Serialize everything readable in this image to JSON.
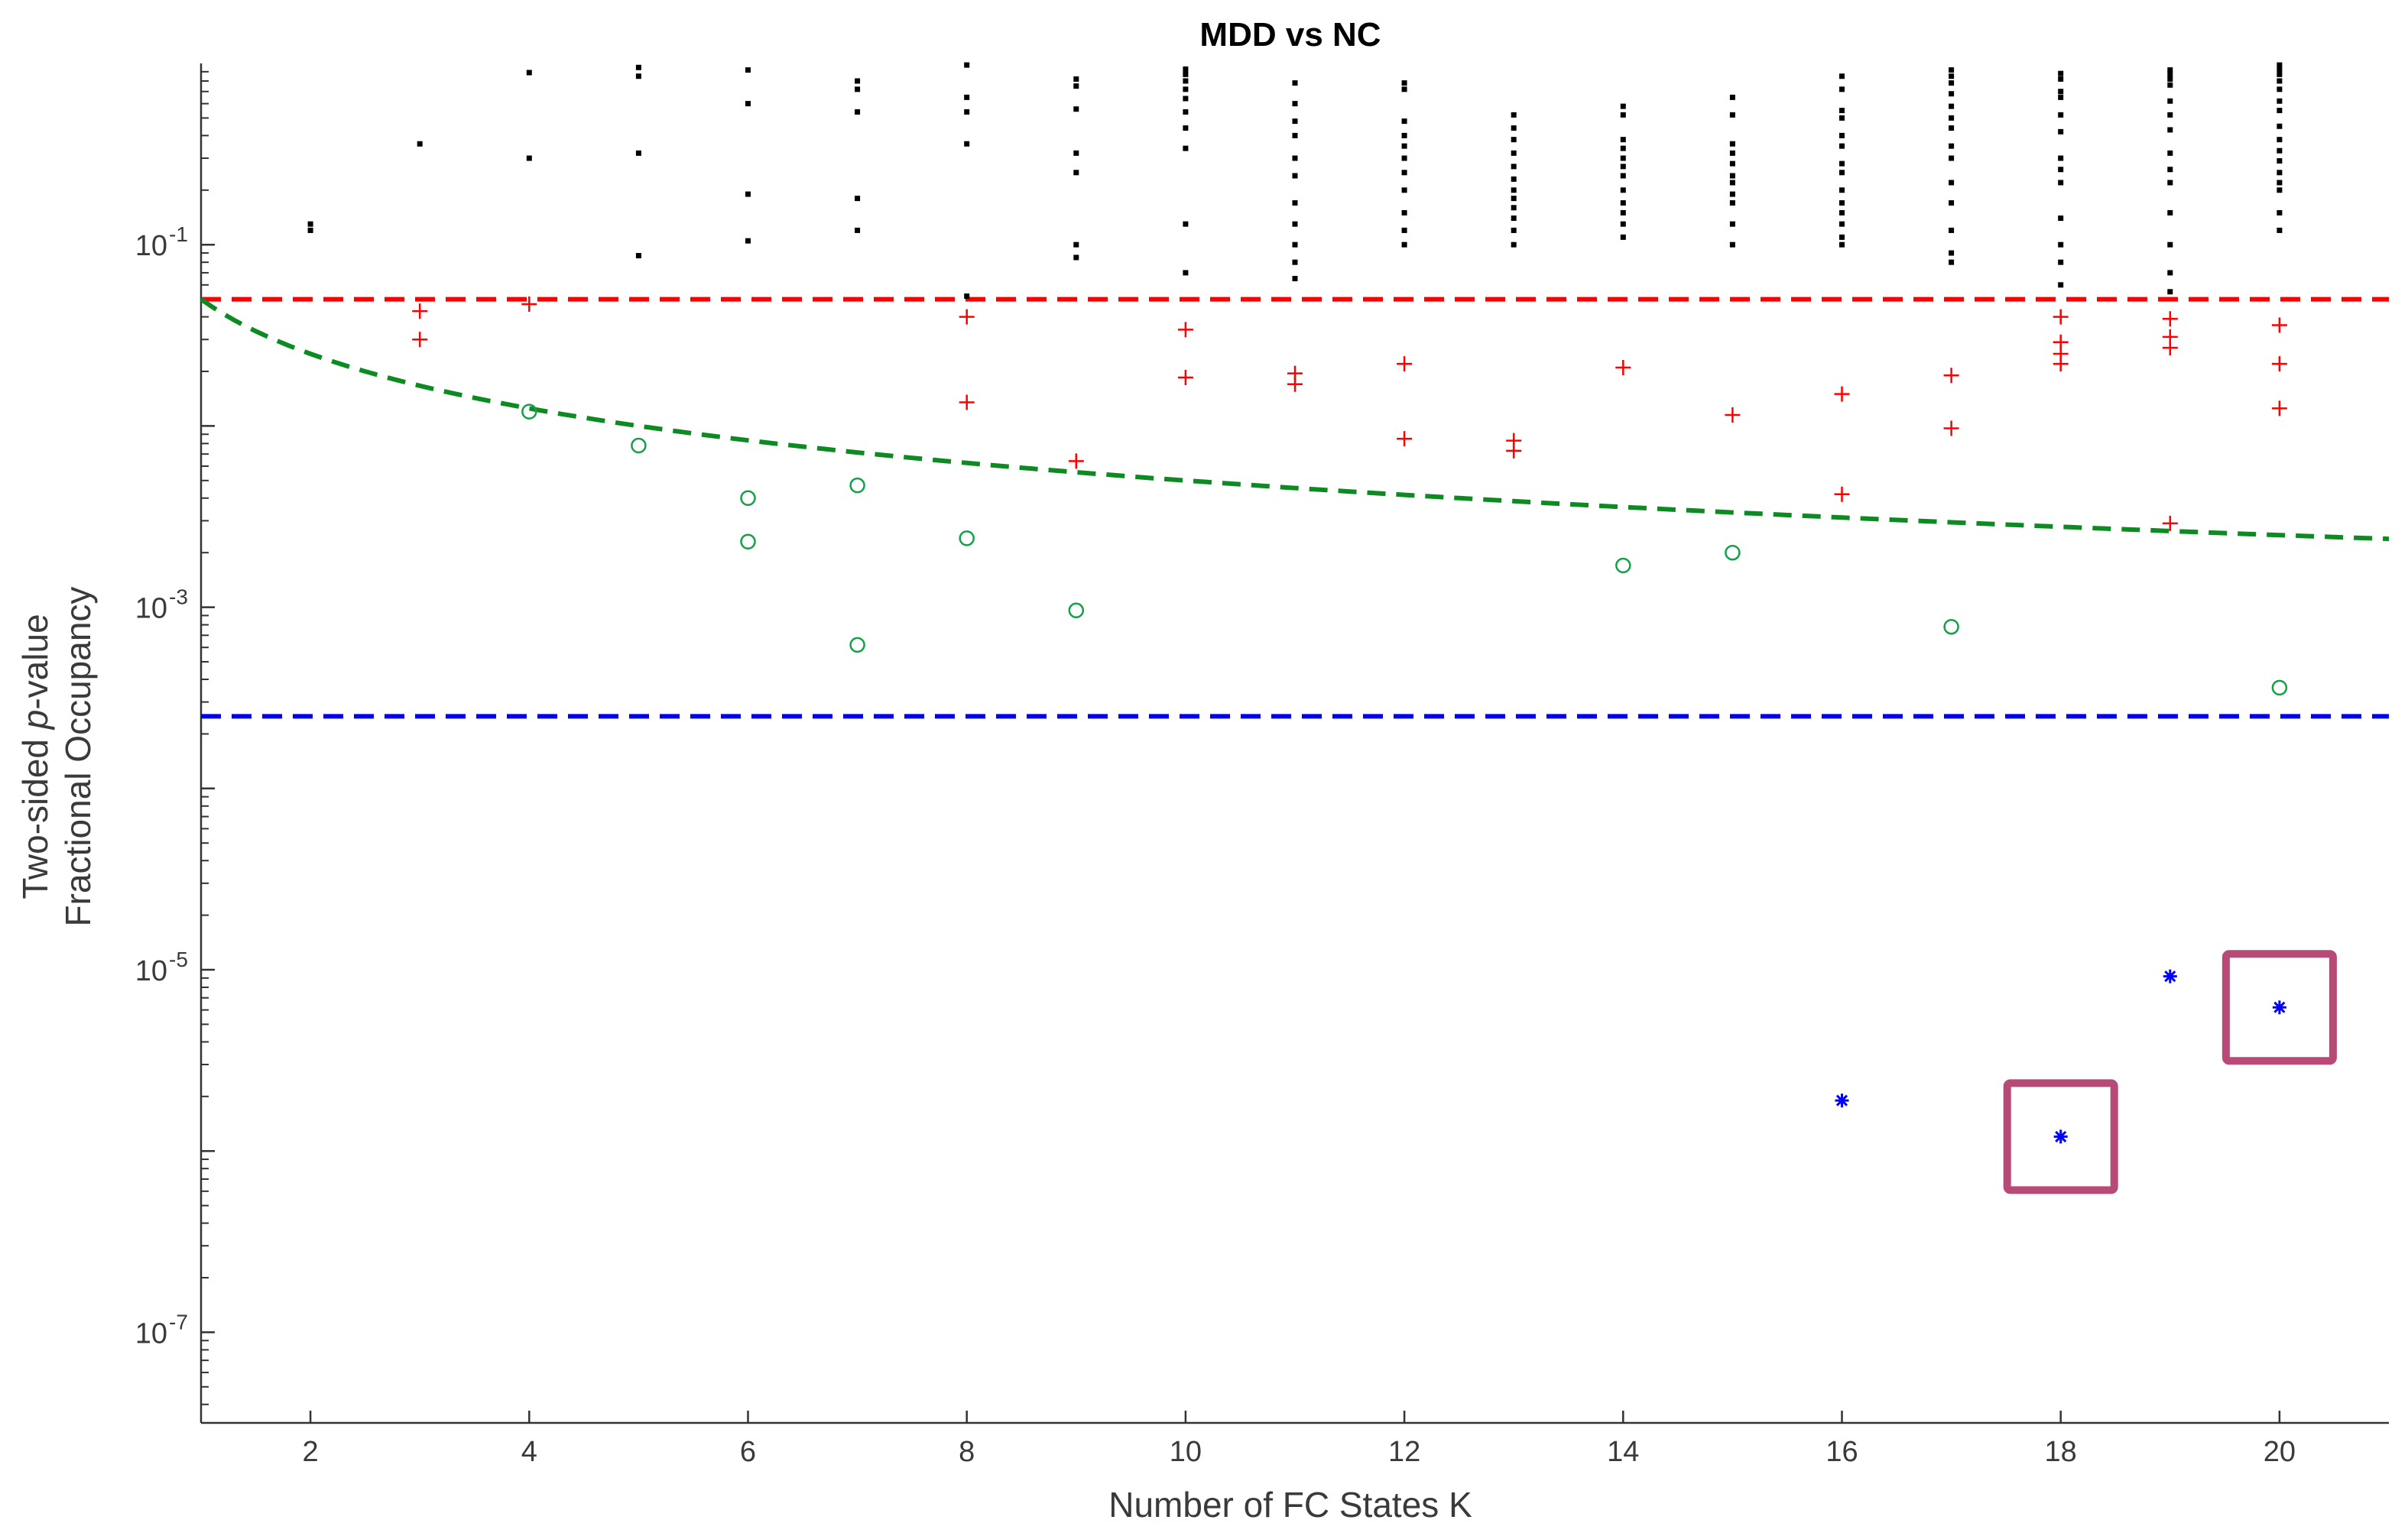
{
  "chart_data": {
    "type": "scatter",
    "title": "MDD vs NC",
    "xlabel": "Number of FC States K",
    "ylabel_lines": [
      {
        "prefix": "Two-sided ",
        "italic": "p",
        "suffix": "-value"
      },
      {
        "prefix": "Fractional Occupancy",
        "italic": "",
        "suffix": ""
      }
    ],
    "xlim": [
      1,
      21
    ],
    "ylim_log10": [
      -7.5,
      0
    ],
    "y_scale": "log",
    "grid": false,
    "legend": "none",
    "x_ticks": [
      2,
      4,
      6,
      8,
      10,
      12,
      14,
      16,
      18,
      20
    ],
    "y_ticks": [
      {
        "base": "10",
        "exp": "-1"
      },
      {
        "base": "10",
        "exp": "-3"
      },
      {
        "base": "10",
        "exp": "-5"
      },
      {
        "base": "10",
        "exp": "-7"
      }
    ],
    "y_tick_values": [
      0.1,
      0.001,
      1e-05,
      1e-07
    ],
    "colors": {
      "black_dots": "#000000",
      "red_plus": "#ff0000",
      "green_circle": "#13a048",
      "blue_star": "#0000ff",
      "red_threshold": "#ff0000",
      "green_threshold": "#0d8a22",
      "blue_threshold": "#0000ee",
      "highlight_box": "#b84a78"
    },
    "reference_lines": [
      {
        "style": "horizontal-dashed",
        "color": "#ff0000",
        "y": 0.05
      },
      {
        "style": "horizontal-dashed",
        "color": "#0000ee",
        "y": 0.00025
      },
      {
        "style": "curve-dashed",
        "color": "#0d8a22",
        "formula": "0.05 / K"
      }
    ],
    "series": [
      {
        "marker": "dot",
        "color": "#000000",
        "points": [
          {
            "x": 2,
            "y": [
              0.13,
              0.12
            ]
          },
          {
            "x": 3,
            "y": [
              0.36
            ]
          },
          {
            "x": 4,
            "y": [
              0.89,
              0.3
            ]
          },
          {
            "x": 5,
            "y": [
              0.95,
              0.85,
              0.32,
              0.087
            ]
          },
          {
            "x": 6,
            "y": [
              0.92,
              0.6,
              0.19,
              0.105
            ]
          },
          {
            "x": 7,
            "y": [
              0.8,
              0.72,
              0.54,
              0.18,
              0.12
            ]
          },
          {
            "x": 8,
            "y": [
              0.98,
              0.65,
              0.54,
              0.36,
              0.052
            ]
          },
          {
            "x": 9,
            "y": [
              0.82,
              0.75,
              0.56,
              0.32,
              0.25,
              0.1,
              0.085
            ]
          },
          {
            "x": 10,
            "y": [
              0.93,
              0.87,
              0.8,
              0.72,
              0.64,
              0.54,
              0.44,
              0.34,
              0.13,
              0.07
            ]
          },
          {
            "x": 11,
            "y": [
              0.78,
              0.6,
              0.48,
              0.4,
              0.3,
              0.24,
              0.17,
              0.13,
              0.1,
              0.08,
              0.065
            ]
          },
          {
            "x": 12,
            "y": [
              0.78,
              0.72,
              0.48,
              0.4,
              0.35,
              0.3,
              0.25,
              0.2,
              0.15,
              0.12,
              0.1
            ]
          },
          {
            "x": 13,
            "y": [
              0.52,
              0.44,
              0.38,
              0.32,
              0.27,
              0.23,
              0.2,
              0.18,
              0.16,
              0.14,
              0.12,
              0.1
            ]
          },
          {
            "x": 14,
            "y": [
              0.58,
              0.52,
              0.38,
              0.34,
              0.3,
              0.27,
              0.24,
              0.2,
              0.17,
              0.15,
              0.13,
              0.11
            ]
          },
          {
            "x": 15,
            "y": [
              0.65,
              0.52,
              0.36,
              0.32,
              0.28,
              0.24,
              0.22,
              0.19,
              0.17,
              0.13,
              0.1
            ]
          },
          {
            "x": 16,
            "y": [
              0.85,
              0.72,
              0.55,
              0.5,
              0.4,
              0.35,
              0.28,
              0.25,
              0.2,
              0.17,
              0.15,
              0.13,
              0.11,
              0.1
            ]
          },
          {
            "x": 17,
            "y": [
              0.92,
              0.85,
              0.78,
              0.68,
              0.58,
              0.5,
              0.44,
              0.35,
              0.3,
              0.22,
              0.17,
              0.12,
              0.09,
              0.08
            ]
          },
          {
            "x": 18,
            "y": [
              0.88,
              0.82,
              0.7,
              0.65,
              0.52,
              0.42,
              0.3,
              0.26,
              0.22,
              0.14,
              0.1,
              0.08,
              0.06
            ]
          },
          {
            "x": 19,
            "y": [
              0.92,
              0.87,
              0.82,
              0.76,
              0.62,
              0.52,
              0.43,
              0.32,
              0.26,
              0.22,
              0.15,
              0.1,
              0.07,
              0.055
            ]
          },
          {
            "x": 20,
            "y": [
              0.98,
              0.93,
              0.87,
              0.8,
              0.72,
              0.62,
              0.55,
              0.45,
              0.38,
              0.33,
              0.29,
              0.25,
              0.22,
              0.2,
              0.15,
              0.12
            ]
          }
        ]
      },
      {
        "marker": "plus",
        "color": "#ff0000",
        "points": [
          {
            "x": 3,
            "y": [
              0.043,
              0.03
            ]
          },
          {
            "x": 4,
            "y": [
              0.047
            ]
          },
          {
            "x": 8,
            "y": [
              0.04,
              0.0135
            ]
          },
          {
            "x": 9,
            "y": [
              0.0064
            ]
          },
          {
            "x": 10,
            "y": [
              0.034,
              0.0185
            ]
          },
          {
            "x": 11,
            "y": [
              0.0195,
              0.017
            ]
          },
          {
            "x": 12,
            "y": [
              0.022,
              0.0085
            ]
          },
          {
            "x": 13,
            "y": [
              0.0083,
              0.0073
            ]
          },
          {
            "x": 14,
            "y": [
              0.021
            ]
          },
          {
            "x": 15,
            "y": [
              0.0115
            ]
          },
          {
            "x": 16,
            "y": [
              0.015,
              0.0042
            ]
          },
          {
            "x": 17,
            "y": [
              0.019,
              0.0097
            ]
          },
          {
            "x": 18,
            "y": [
              0.04,
              0.029,
              0.025,
              0.022
            ]
          },
          {
            "x": 19,
            "y": [
              0.039,
              0.031,
              0.027,
              0.0029
            ]
          },
          {
            "x": 20,
            "y": [
              0.036,
              0.022,
              0.0125
            ]
          }
        ]
      },
      {
        "marker": "circle",
        "color": "#13a048",
        "points": [
          {
            "x": 4,
            "y": [
              0.012
            ]
          },
          {
            "x": 5,
            "y": [
              0.0078
            ]
          },
          {
            "x": 6,
            "y": [
              0.004,
              0.0023
            ]
          },
          {
            "x": 7,
            "y": [
              0.0047,
              0.00062
            ]
          },
          {
            "x": 8,
            "y": [
              0.0024
            ]
          },
          {
            "x": 9,
            "y": [
              0.00096
            ]
          },
          {
            "x": 14,
            "y": [
              0.0017
            ]
          },
          {
            "x": 15,
            "y": [
              0.002
            ]
          },
          {
            "x": 17,
            "y": [
              0.00078
            ]
          },
          {
            "x": 20,
            "y": [
              0.00036
            ]
          }
        ]
      },
      {
        "marker": "star",
        "color": "#0000ff",
        "points": [
          {
            "x": 16,
            "y": [
              1.9e-06
            ]
          },
          {
            "x": 18,
            "y": [
              1.2e-06
            ]
          },
          {
            "x": 19,
            "y": [
              9.2e-06
            ]
          },
          {
            "x": 20,
            "y": [
              6.2e-06
            ]
          }
        ]
      }
    ],
    "highlighted_points": [
      {
        "x": 18,
        "y": 1.2e-06
      },
      {
        "x": 20,
        "y": 6.2e-06
      }
    ]
  }
}
